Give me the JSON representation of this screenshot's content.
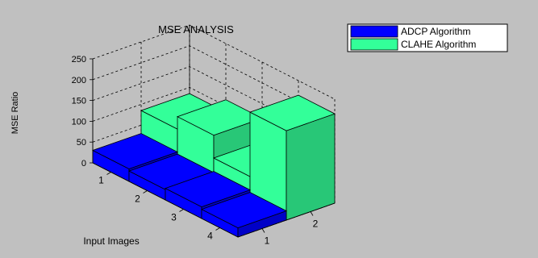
{
  "chart_data": {
    "type": "bar3d",
    "title": "MSE ANALYSIS",
    "ylabel": "MSE Ratio",
    "xlabel": "Input Images",
    "zlim": [
      0,
      250
    ],
    "zticks": [
      "0",
      "50",
      "100",
      "150",
      "200",
      "250"
    ],
    "categories": [
      "1",
      "2",
      "3",
      "4"
    ],
    "series_ticks": [
      "1",
      "2"
    ],
    "series": [
      {
        "name": "ADCP Algorithm",
        "color": "#0000ff",
        "values": [
          30,
          25,
          28,
          22
        ]
      },
      {
        "name": "CLAHE Algorithm",
        "color": "#33ff99",
        "values": [
          85,
          115,
          60,
          215
        ]
      }
    ],
    "grid": true,
    "legend_position": "top-right"
  }
}
